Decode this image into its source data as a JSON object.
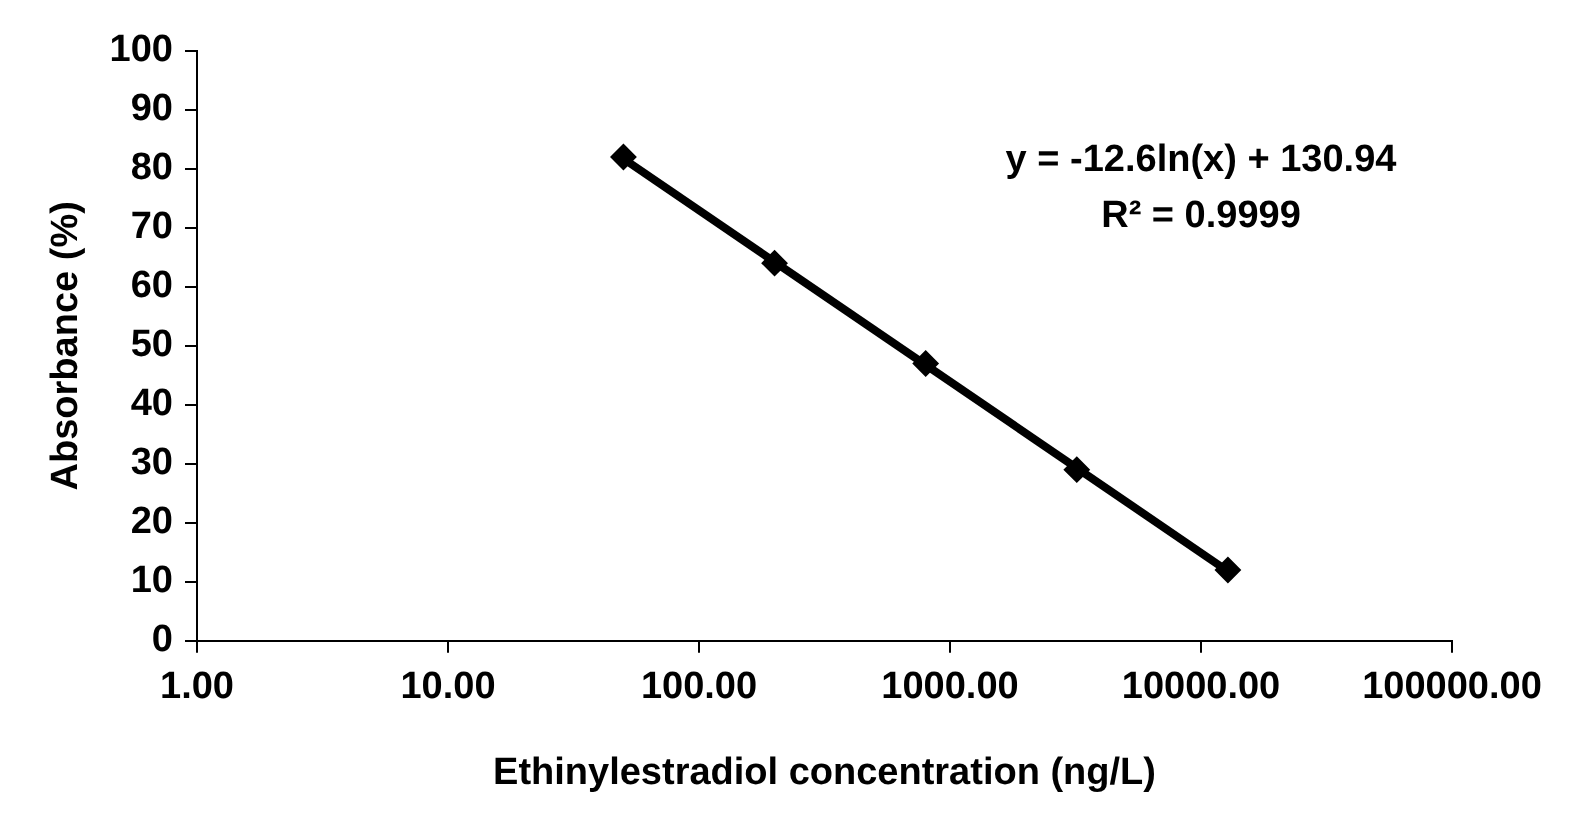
{
  "chart_data": {
    "type": "scatter",
    "xlabel": "Ethinylestradiol concentration (ng/L)",
    "ylabel": "Absorbance (%)",
    "log": "x",
    "xlim": [
      1,
      100000
    ],
    "xticks": [
      {
        "value": 1,
        "label": "1.00"
      },
      {
        "value": 10,
        "label": "10.00"
      },
      {
        "value": 100,
        "label": "100.00"
      },
      {
        "value": 1000,
        "label": "1000.00"
      },
      {
        "value": 10000,
        "label": "10000.00"
      },
      {
        "value": 100000,
        "label": "100000.00"
      }
    ],
    "ylim": [
      0,
      100
    ],
    "yticks": [
      0,
      10,
      20,
      30,
      40,
      50,
      60,
      70,
      80,
      90,
      100
    ],
    "grid": false,
    "legend": false,
    "series": [
      {
        "type": "scatter",
        "color": "#000000",
        "marker": "diamond",
        "x": [
          50,
          200,
          800,
          3200,
          12800
        ],
        "values": [
          82,
          64,
          47,
          29,
          12
        ]
      },
      {
        "type": "line",
        "color": "#000000",
        "marker": "none",
        "line_style": "solid",
        "x": [
          50,
          12800
        ],
        "values": [
          81.7,
          11.8
        ]
      }
    ],
    "annotations": [
      "y = -12.6ln(x) + 130.94",
      "R² = 0.9999"
    ]
  }
}
